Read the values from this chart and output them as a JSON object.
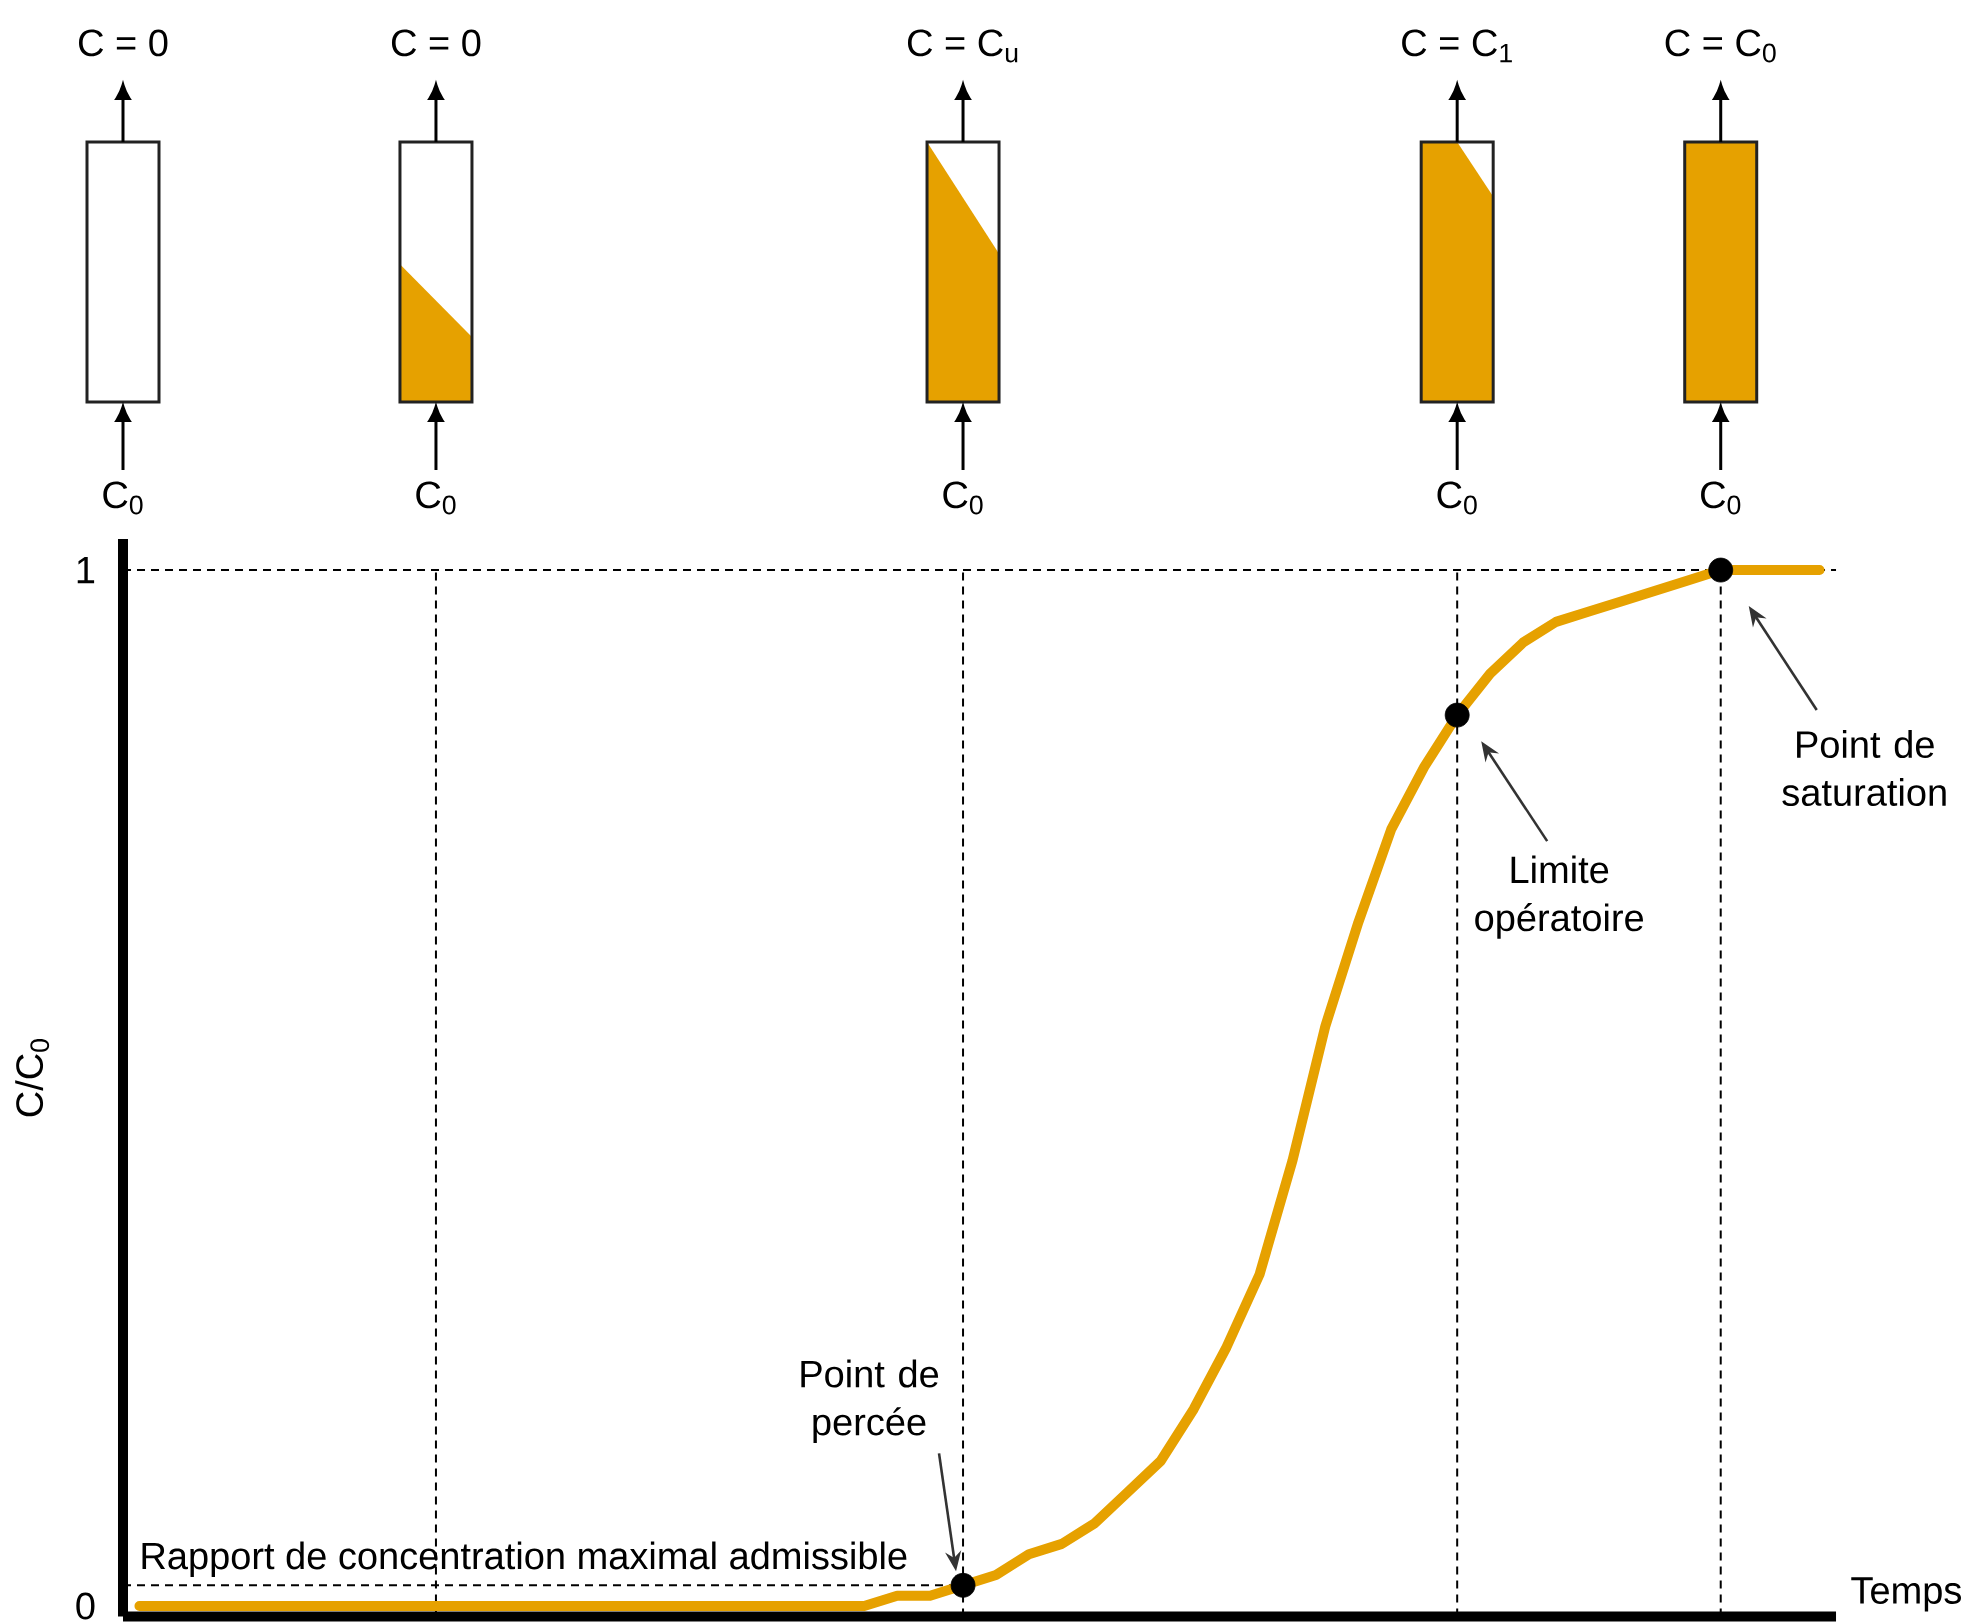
{
  "chart_data": {
    "type": "line",
    "xlabel": "Temps",
    "ylabel": "C/C$_{0}$",
    "categories": [
      null,
      null,
      null,
      null,
      null,
      null,
      null,
      null,
      null,
      null,
      null,
      null,
      null,
      null,
      null,
      null,
      null,
      null,
      null,
      null,
      null,
      null,
      null,
      null,
      null,
      null,
      null,
      null,
      null,
      null,
      null,
      null,
      null,
      null,
      null,
      null,
      null,
      null,
      null,
      null,
      null,
      null,
      null,
      null,
      null,
      null,
      null,
      null,
      null,
      null,
      null,
      null
    ],
    "series": [
      {
        "color": "#e6a100",
        "values": [
          0,
          0,
          0,
          0,
          0,
          0,
          0,
          0,
          0,
          0,
          0,
          0,
          0,
          0,
          0,
          0,
          0,
          0,
          0,
          0,
          0,
          0,
          0,
          0.01,
          0.01,
          0.02,
          0.03,
          0.05,
          0.06,
          0.08,
          0.11,
          0.14,
          0.19,
          0.25,
          0.32,
          0.43,
          0.56,
          0.66,
          0.75,
          0.81,
          0.86,
          0.9,
          0.93,
          0.95,
          0.96,
          0.97,
          0.98,
          0.99,
          1,
          1,
          1,
          1
        ]
      },
      {
        "type": "scatter",
        "color": "#000000",
        "marker": "circle",
        "values": [
          null,
          null,
          null,
          null,
          null,
          null,
          null,
          null,
          null,
          null,
          null,
          null,
          null,
          null,
          null,
          null,
          null,
          null,
          null,
          null,
          null,
          null,
          null,
          null,
          null,
          0.02,
          null,
          null,
          null,
          null,
          null,
          null,
          null,
          null,
          null,
          null,
          null,
          null,
          null,
          null,
          0.86,
          null,
          null,
          null,
          null,
          null,
          null,
          null,
          1,
          null,
          null,
          null
        ]
      }
    ],
    "ylim": [
      -0.01,
      1.03
    ],
    "yticks": [
      0,
      1
    ],
    "tick_labels": "y",
    "grid": "x",
    "ref_lines": [
      {
        "axis": "y",
        "value": 1,
        "color": "#000000",
        "line_style": "dashed"
      },
      {
        "axis": "y",
        "value": 0.02,
        "label": "Rapport de concentration maximal admissible",
        "color": "#000000",
        "line_style": "dashed"
      }
    ],
    "annotations": [
      "C = 0",
      "C = 0",
      "C = C$_{u}$",
      "C = C$_{1}$",
      "C = C$_{0}$",
      "C$_{0}$",
      "C$_{0}$",
      "C$_{0}$",
      "C$_{0}$",
      "C$_{0}$",
      "Point de percée",
      "Limite opératoire",
      "Point de saturation"
    ]
  }
}
